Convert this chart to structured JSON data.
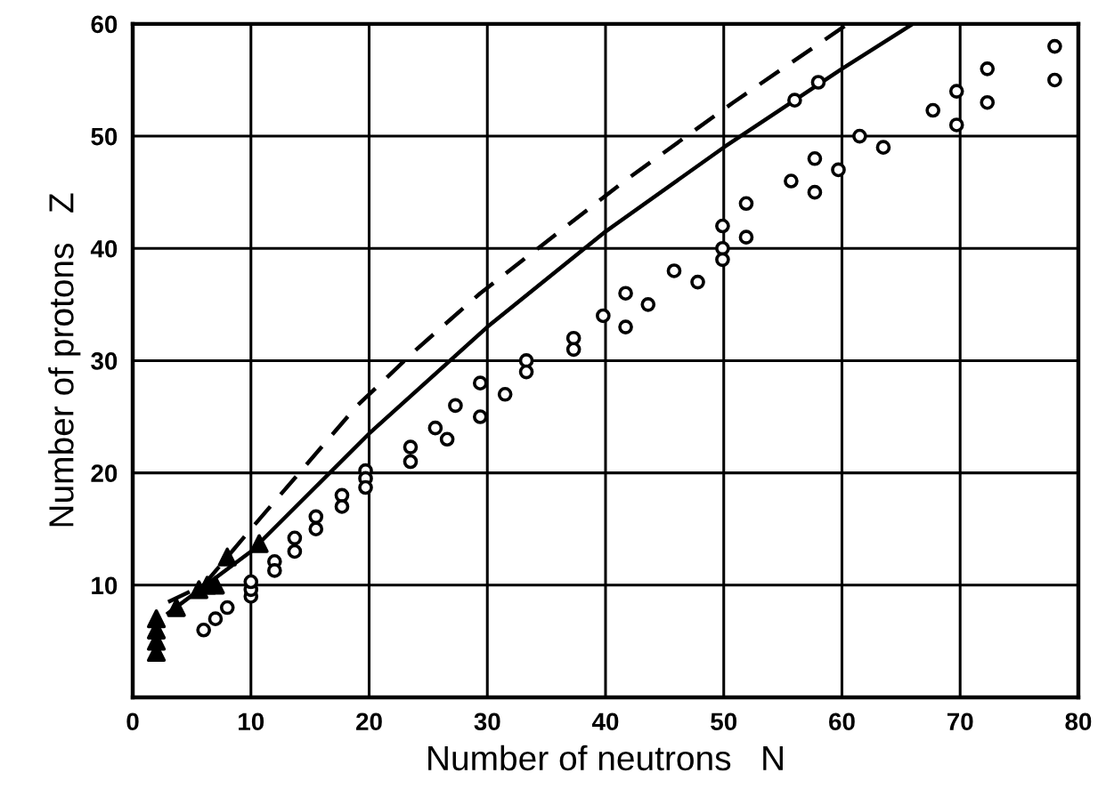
{
  "chart_data": {
    "type": "scatter",
    "xlabel": "Number of neutrons   N",
    "ylabel": "Number of protons   Z",
    "xlim": [
      0,
      80
    ],
    "ylim": [
      0,
      60
    ],
    "xticks": [
      0,
      10,
      20,
      30,
      40,
      50,
      60,
      70,
      80
    ],
    "yticks": [
      10,
      20,
      30,
      40,
      50,
      60
    ],
    "grid": true,
    "series": [
      {
        "marker": "circle",
        "color": "#000000",
        "x": [
          6,
          7,
          8,
          10,
          10,
          10,
          12,
          12,
          13.7,
          13.7,
          15.5,
          15.5,
          17.7,
          17.7,
          19.7,
          19.7,
          19.7,
          23.5,
          23.5,
          25.6,
          26.6,
          27.3,
          29.4,
          29.4,
          31.5,
          33.3,
          33.3,
          37.3,
          37.3,
          39.8,
          41.7,
          41.7,
          43.6,
          45.8,
          47.8,
          49.9,
          49.9,
          49.9,
          51.9,
          51.9,
          55.7,
          57.7,
          57.7,
          59.7,
          61.5,
          63.5,
          67.7,
          69.7,
          69.7,
          72.3,
          72.3,
          78,
          78
        ],
        "values": [
          6,
          7,
          8,
          9,
          9.6,
          10.3,
          12.1,
          11.3,
          14.2,
          13,
          16.1,
          15,
          18,
          17,
          20.2,
          19.5,
          18.7,
          22.3,
          21,
          24,
          23,
          26,
          28,
          25,
          27,
          30,
          29,
          32,
          31,
          34,
          36,
          33,
          35,
          38,
          37,
          42,
          40,
          39,
          44,
          41,
          46,
          48,
          45,
          47,
          50,
          49,
          52.3,
          54,
          51,
          56,
          53,
          58,
          55
        ]
      },
      {
        "marker": "circle",
        "color": "#000000",
        "x": [
          56,
          58
        ],
        "values": [
          53.2,
          54.8
        ]
      },
      {
        "marker": "triangle",
        "color": "#000000",
        "x": [
          2,
          2,
          2,
          2,
          3.7,
          5.6,
          6.3,
          7,
          8,
          10.7
        ],
        "values": [
          4,
          5,
          6,
          7,
          8,
          9.6,
          10,
          10,
          12.5,
          13.7
        ]
      },
      {
        "type": "line",
        "line_style": "solid",
        "color": "#000000",
        "x": [
          3,
          10,
          20,
          30,
          40,
          50,
          60,
          66
        ],
        "values": [
          7.5,
          13,
          23.5,
          33,
          41.5,
          49,
          56,
          60
        ]
      },
      {
        "type": "line",
        "line_style": "dashed",
        "color": "#000000",
        "x": [
          3,
          6,
          10,
          19,
          24,
          29.4,
          41.6,
          50.8,
          60.5
        ],
        "values": [
          8.5,
          10,
          15,
          26,
          31,
          36,
          46,
          53,
          60
        ]
      }
    ]
  }
}
